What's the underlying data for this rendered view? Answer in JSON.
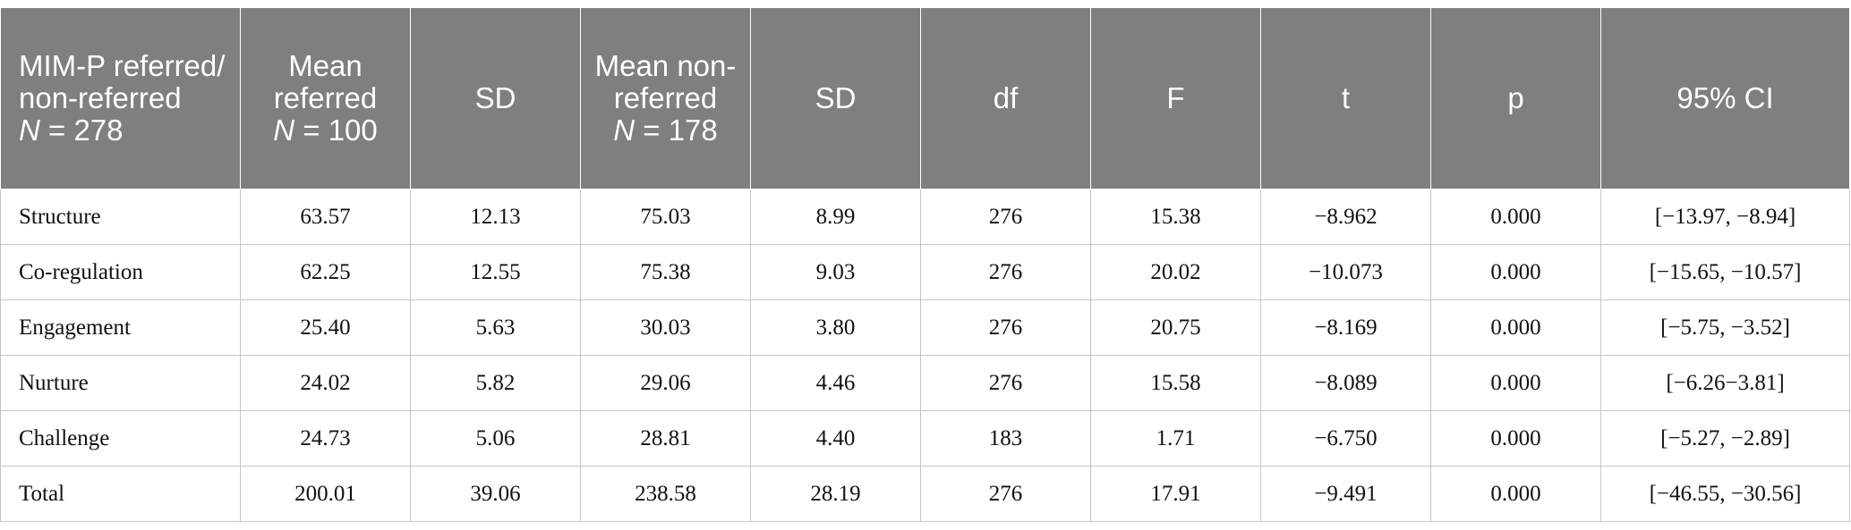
{
  "table": {
    "header": [
      {
        "text": "MIM-P referred/ non-referred",
        "n": "N",
        "count": "= 278"
      },
      {
        "text": "Mean referred",
        "n": "N",
        "count": "= 100"
      },
      {
        "text": "SD"
      },
      {
        "text": "Mean non-referred",
        "n": "N",
        "count": "= 178"
      },
      {
        "text": "SD"
      },
      {
        "text": "df"
      },
      {
        "text": "F"
      },
      {
        "text": "t"
      },
      {
        "text": "p"
      },
      {
        "text": "95% CI"
      }
    ],
    "rows": [
      [
        "Structure",
        "63.57",
        "12.13",
        "75.03",
        "8.99",
        "276",
        "15.38",
        "−8.962",
        "0.000",
        "[−13.97, −8.94]"
      ],
      [
        "Co-regulation",
        "62.25",
        "12.55",
        "75.38",
        "9.03",
        "276",
        "20.02",
        "−10.073",
        "0.000",
        "[−15.65, −10.57]"
      ],
      [
        "Engagement",
        "25.40",
        "5.63",
        "30.03",
        "3.80",
        "276",
        "20.75",
        "−8.169",
        "0.000",
        "[−5.75, −3.52]"
      ],
      [
        "Nurture",
        "24.02",
        "5.82",
        "29.06",
        "4.46",
        "276",
        "15.58",
        "−8.089",
        "0.000",
        "[−6.26−3.81]"
      ],
      [
        "Challenge",
        "24.73",
        "5.06",
        "28.81",
        "4.40",
        "183",
        "1.71",
        "−6.750",
        "0.000",
        "[−5.27, −2.89]"
      ],
      [
        "Total",
        "200.01",
        "39.06",
        "238.58",
        "28.19",
        "276",
        "17.91",
        "−9.491",
        "0.000",
        "[−46.55, −30.56]"
      ]
    ]
  }
}
